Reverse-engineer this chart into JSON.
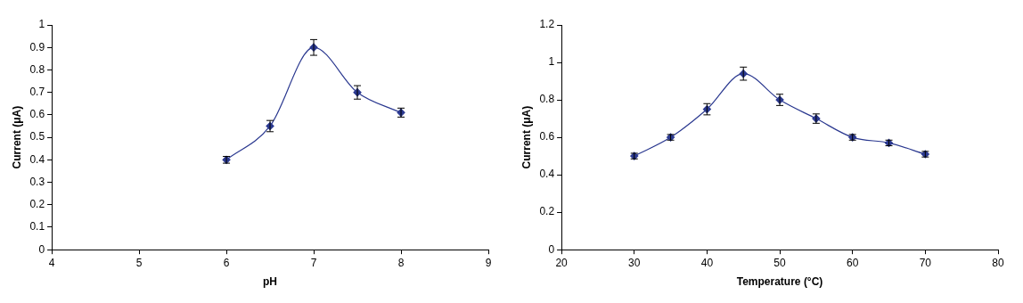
{
  "chart_data": [
    {
      "type": "line",
      "xlabel": "pH",
      "ylabel": "Current (μA)",
      "x": [
        6,
        6.5,
        7,
        7.5,
        8
      ],
      "xlim": [
        4,
        9
      ],
      "xticks": [
        4,
        5,
        6,
        7,
        8,
        9
      ],
      "ylim": [
        0,
        1
      ],
      "yticks": [
        0,
        0.1,
        0.2,
        0.3,
        0.4,
        0.5,
        0.6,
        0.7,
        0.8,
        0.9,
        1
      ],
      "grid": false,
      "legend": false,
      "marker": "diamond",
      "line_style": "solid",
      "series": [
        {
          "color": "#2b3990",
          "values": [
            0.4,
            0.55,
            0.9,
            0.7,
            0.61
          ],
          "errors": [
            0.015,
            0.025,
            0.035,
            0.03,
            0.02
          ]
        }
      ]
    },
    {
      "type": "line",
      "xlabel": "Temperature (°C)",
      "ylabel": "Current (μA)",
      "x": [
        30,
        35,
        40,
        45,
        50,
        55,
        60,
        65,
        70
      ],
      "xlim": [
        20,
        80
      ],
      "xticks": [
        20,
        30,
        40,
        50,
        60,
        70,
        80
      ],
      "ylim": [
        0,
        1.2
      ],
      "yticks": [
        0,
        0.2,
        0.4,
        0.6,
        0.8,
        1,
        1.2
      ],
      "grid": false,
      "legend": false,
      "marker": "diamond",
      "line_style": "solid",
      "series": [
        {
          "color": "#2b3990",
          "values": [
            0.5,
            0.6,
            0.75,
            0.94,
            0.8,
            0.7,
            0.6,
            0.57,
            0.51
          ],
          "errors": [
            0.015,
            0.015,
            0.03,
            0.035,
            0.03,
            0.025,
            0.015,
            0.015,
            0.015
          ]
        }
      ]
    }
  ]
}
